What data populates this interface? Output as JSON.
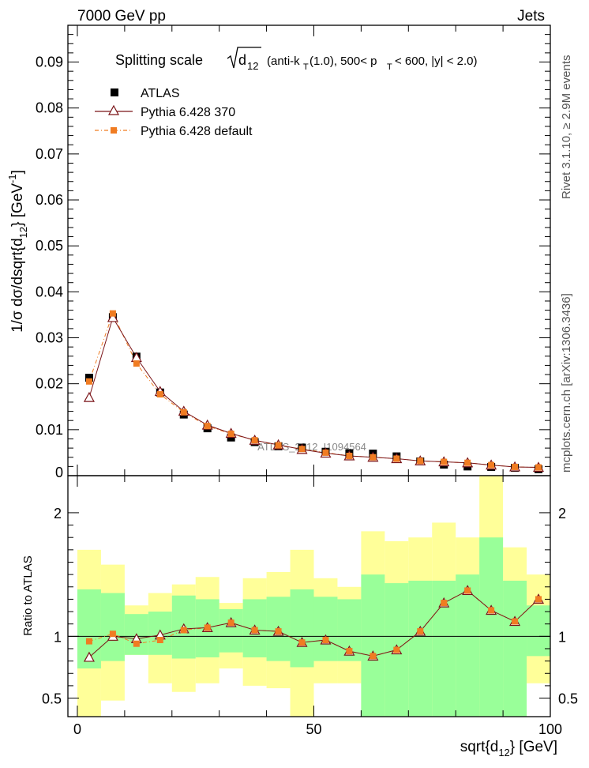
{
  "header": {
    "left": "7000 GeV pp",
    "right": "Jets"
  },
  "side_labels": {
    "rivet": "Rivet 3.1.10, ≥ 2.9M events",
    "mcplots": "mcplots.cern.ch [arXiv:1306.3436]"
  },
  "chart_data": [
    {
      "type": "scatter",
      "title": "Splitting scale √d₁₂ (anti-k_T(1.0), 500< p_T < 600, |y| < 2.0)",
      "title_parts": {
        "prefix": "Splitting scale",
        "sqrt_arg": "d",
        "sqrt_sub": "12",
        "suffix_a": "(anti-k",
        "suffix_a_sub": "T",
        "suffix_b": "(1.0), 500< p",
        "suffix_b_sub": "T",
        "suffix_c": "< 600, |y| < 2.0)"
      },
      "ylabel": "1/σ dσ/dsqrt{d_12} [GeV^-1]",
      "ylabel_parts": {
        "main": "1/σ dσ/dsqrt{d",
        "sub": "12",
        "tail": "} [GeV",
        "sup": "-1",
        "end": "]"
      },
      "watermark": "ATLAS_2012_I1094564",
      "xlim": [
        -2,
        100
      ],
      "ylim": [
        0,
        0.098
      ],
      "yticks": [
        0.01,
        0.02,
        0.03,
        0.04,
        0.05,
        0.06,
        0.07,
        0.08,
        0.09
      ],
      "ytick_labels": [
        "0.01",
        "0.02",
        "0.03",
        "0.04",
        "0.05",
        "0.06",
        "0.07",
        "0.08",
        "0.09"
      ],
      "y_zero_label": "0",
      "x": [
        2.5,
        7.5,
        12.5,
        17.5,
        22.5,
        27.5,
        32.5,
        37.5,
        42.5,
        47.5,
        52.5,
        57.5,
        62.5,
        67.5,
        72.5,
        77.5,
        82.5,
        87.5,
        92.5,
        97.5
      ],
      "series": [
        {
          "name": "ATLAS",
          "color": "#000000",
          "values": [
            0.0213,
            0.0345,
            0.0259,
            0.0181,
            0.0133,
            0.0103,
            0.0083,
            0.0073,
            0.0064,
            0.0061,
            0.0052,
            0.0049,
            0.0048,
            0.0042,
            0.0031,
            0.0024,
            0.002,
            0.0019,
            0.0017,
            0.0014
          ]
        },
        {
          "name": "Pythia 6.428 370",
          "color": "#7a1418",
          "values": [
            0.017,
            0.0344,
            0.0257,
            0.0183,
            0.014,
            0.011,
            0.0092,
            0.0077,
            0.0067,
            0.0057,
            0.0049,
            0.0043,
            0.004,
            0.0037,
            0.0032,
            0.003,
            0.0028,
            0.0023,
            0.0019,
            0.0018
          ]
        },
        {
          "name": "Pythia 6.428 default",
          "color": "#f07c22",
          "values": [
            0.0205,
            0.0353,
            0.0244,
            0.0177,
            0.0138,
            0.0108,
            0.0091,
            0.0077,
            0.0066,
            0.0058,
            0.005,
            0.0043,
            0.004,
            0.0037,
            0.0032,
            0.003,
            0.0028,
            0.0023,
            0.0019,
            0.0018
          ]
        }
      ]
    },
    {
      "type": "scatter",
      "ylabel": "Ratio to ATLAS",
      "xlabel": "sqrt{d_12} [GeV]",
      "xlabel_parts": {
        "main": "sqrt{d",
        "sub": "12",
        "tail": "} [GeV]"
      },
      "xlim": [
        -2,
        100
      ],
      "ylim": [
        0.35,
        2.3
      ],
      "xticks": [
        0,
        50,
        100
      ],
      "xtick_labels": [
        "0",
        "50",
        "100"
      ],
      "yticks": [
        0.5,
        1,
        2
      ],
      "ytick_labels": [
        "0.5",
        "1",
        "2"
      ],
      "reference_line": 1,
      "bin_edges": [
        0,
        5,
        10,
        15,
        20,
        25,
        30,
        35,
        40,
        45,
        50,
        55,
        60,
        65,
        70,
        75,
        80,
        85,
        90,
        95,
        100
      ],
      "band_1sigma": {
        "color": "#99ff99",
        "low": [
          0.74,
          0.8,
          0.85,
          0.85,
          0.82,
          0.83,
          0.87,
          0.83,
          0.8,
          0.75,
          0.8,
          0.8,
          0.35,
          0.35,
          0.35,
          0.35,
          0.35,
          0.35,
          0.35,
          0.84
        ],
        "high": [
          1.38,
          1.35,
          1.18,
          1.2,
          1.33,
          1.3,
          1.22,
          1.3,
          1.32,
          1.38,
          1.32,
          1.3,
          1.5,
          1.43,
          1.45,
          1.45,
          1.5,
          1.8,
          1.45,
          1.25
        ]
      },
      "band_2sigma": {
        "color": "#ffff99",
        "low": [
          0.35,
          0.48,
          0.85,
          0.62,
          0.55,
          0.62,
          0.74,
          0.6,
          0.58,
          0.35,
          0.62,
          0.62,
          0.35,
          0.35,
          0.35,
          0.35,
          0.35,
          0.35,
          0.35,
          0.62
        ],
        "high": [
          1.7,
          1.58,
          1.25,
          1.35,
          1.42,
          1.48,
          1.27,
          1.47,
          1.52,
          1.7,
          1.47,
          1.4,
          1.85,
          1.77,
          1.8,
          1.92,
          1.8,
          2.3,
          1.72,
          1.5
        ]
      },
      "series": [
        {
          "name": "Pythia 6.428 370",
          "color": "#7a1418",
          "values": [
            0.83,
            1.0,
            0.98,
            1.01,
            1.06,
            1.07,
            1.11,
            1.05,
            1.04,
            0.95,
            0.97,
            0.88,
            0.84,
            0.89,
            1.04,
            1.27,
            1.37,
            1.21,
            1.12,
            1.3
          ]
        },
        {
          "name": "Pythia 6.428 default",
          "color": "#f07c22",
          "values": [
            0.96,
            1.02,
            0.94,
            0.97,
            1.05,
            1.07,
            1.11,
            1.05,
            1.04,
            0.95,
            0.97,
            0.88,
            0.84,
            0.89,
            1.04,
            1.27,
            1.37,
            1.21,
            1.12,
            1.3
          ]
        }
      ]
    }
  ]
}
